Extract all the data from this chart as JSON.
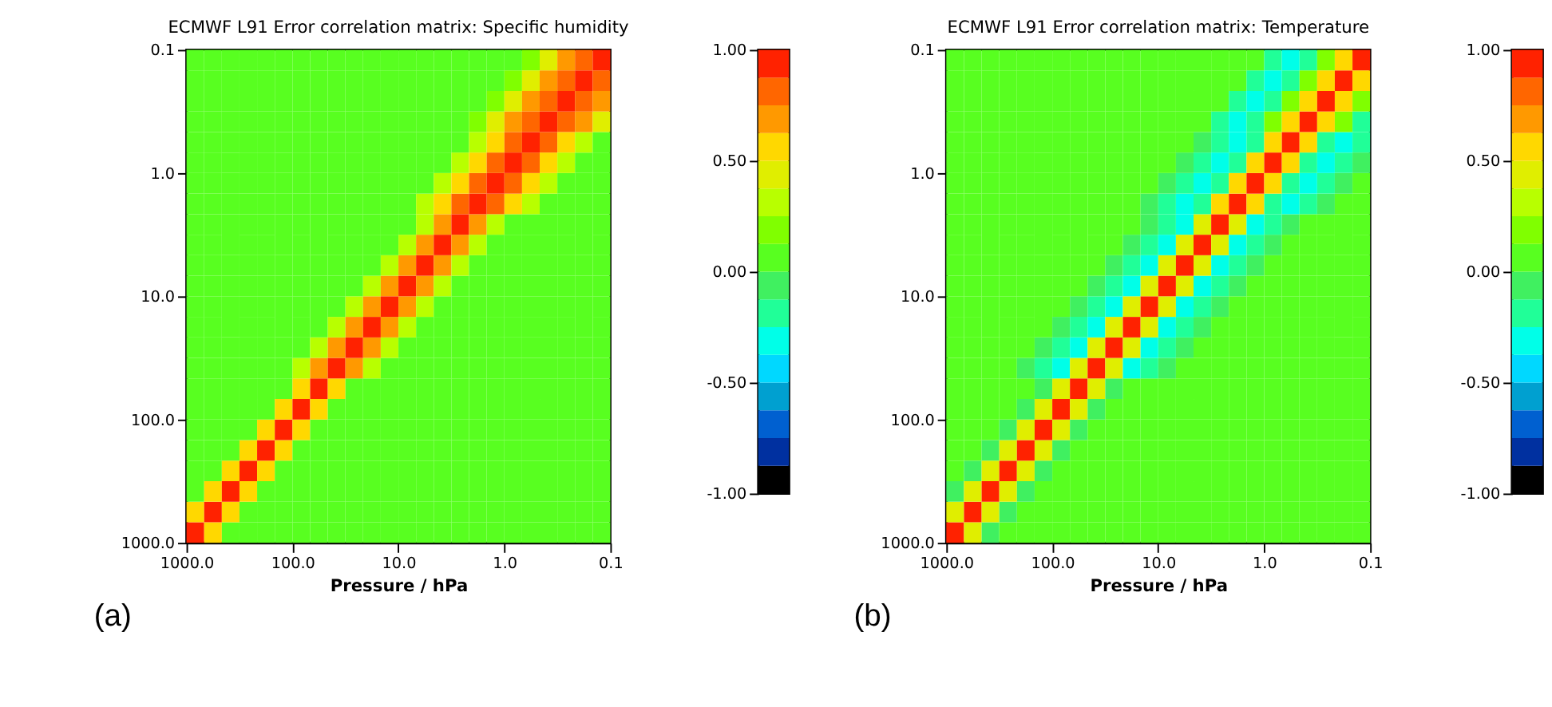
{
  "chart_data": [
    {
      "type": "heatmap",
      "title": "ECMWF L91 Error correlation matrix: Specific humidity",
      "xlabel": "Pressure / hPa",
      "annotations": [
        "(a)"
      ],
      "log": "xy",
      "grid": false,
      "x": [
        825,
        562,
        383,
        261,
        178,
        121,
        82.5,
        56.2,
        38.3,
        26.1,
        17.8,
        12.1,
        8.25,
        5.62,
        3.83,
        2.61,
        1.78,
        1.21,
        0.825,
        0.562,
        0.383,
        0.261,
        0.178,
        0.121
      ],
      "y": [
        825,
        562,
        383,
        261,
        178,
        121,
        82.5,
        56.2,
        38.3,
        26.1,
        17.8,
        12.1,
        8.25,
        5.62,
        3.83,
        2.61,
        1.78,
        1.21,
        0.825,
        0.562,
        0.383,
        0.261,
        0.178,
        0.121
      ],
      "xlim": [
        1000,
        0.1
      ],
      "ylim": [
        1000,
        0.1
      ],
      "xticks": [
        {
          "value": 1000,
          "label": "1000.0"
        },
        {
          "value": 100,
          "label": "100.0"
        },
        {
          "value": 10,
          "label": "10.0"
        },
        {
          "value": 1,
          "label": "1.0"
        },
        0.1
      ],
      "yticks": [
        {
          "value": 1000,
          "label": "1000.0"
        },
        {
          "value": 100,
          "label": "100.0"
        },
        {
          "value": 10,
          "label": "10.0"
        },
        {
          "value": 1,
          "label": "1.0"
        },
        0.1
      ],
      "clim": [
        -1,
        1
      ],
      "cticks": [
        {
          "value": 1,
          "label": "1.00"
        },
        {
          "value": 0.5,
          "label": "0.50"
        },
        {
          "value": 0,
          "label": "0.00"
        },
        {
          "value": -0.5,
          "label": "-0.50"
        },
        {
          "value": -1,
          "label": "-1.00"
        }
      ],
      "colors": [
        "#000000",
        "#0030a0",
        "#0060d0",
        "#00a0d0",
        "#00d8ff",
        "#00ffe8",
        "#20ff98",
        "#40f060",
        "#58ff20",
        "#80ff00",
        "#b8ff00",
        "#e0ee00",
        "#ffd800",
        "#ff9900",
        "#ff6600",
        "#ff2200"
      ],
      "cells": [
        [
          1,
          0.56,
          0.06,
          0.06,
          0.06,
          0.06,
          0.06,
          0.06,
          0.06,
          0.06,
          0.06,
          0.06,
          0.06,
          0.06,
          0.06,
          0.06,
          0.06,
          0.06,
          0.06,
          0.06,
          0.06,
          0.06,
          0.06,
          0.06
        ],
        [
          0.56,
          1,
          0.56,
          0.06,
          0.06,
          0.06,
          0.06,
          0.06,
          0.06,
          0.06,
          0.06,
          0.06,
          0.06,
          0.06,
          0.06,
          0.06,
          0.06,
          0.06,
          0.06,
          0.06,
          0.06,
          0.06,
          0.06,
          0.06
        ],
        [
          0.06,
          0.56,
          1,
          0.56,
          0.06,
          0.06,
          0.06,
          0.06,
          0.06,
          0.06,
          0.06,
          0.06,
          0.06,
          0.06,
          0.06,
          0.06,
          0.06,
          0.06,
          0.06,
          0.06,
          0.06,
          0.06,
          0.06,
          0.06
        ],
        [
          0.06,
          0.06,
          0.56,
          1,
          0.56,
          0.06,
          0.06,
          0.06,
          0.06,
          0.06,
          0.06,
          0.06,
          0.06,
          0.06,
          0.06,
          0.06,
          0.06,
          0.06,
          0.06,
          0.06,
          0.06,
          0.06,
          0.06,
          0.06
        ],
        [
          0.06,
          0.06,
          0.06,
          0.56,
          1,
          0.56,
          0.06,
          0.06,
          0.06,
          0.06,
          0.06,
          0.06,
          0.06,
          0.06,
          0.06,
          0.06,
          0.06,
          0.06,
          0.06,
          0.06,
          0.06,
          0.06,
          0.06,
          0.06
        ],
        [
          0.06,
          0.06,
          0.06,
          0.06,
          0.56,
          1,
          0.56,
          0.06,
          0.06,
          0.06,
          0.06,
          0.06,
          0.06,
          0.06,
          0.06,
          0.06,
          0.06,
          0.06,
          0.06,
          0.06,
          0.06,
          0.06,
          0.06,
          0.06
        ],
        [
          0.06,
          0.06,
          0.06,
          0.06,
          0.06,
          0.56,
          1,
          0.56,
          0.06,
          0.06,
          0.06,
          0.06,
          0.06,
          0.06,
          0.06,
          0.06,
          0.06,
          0.06,
          0.06,
          0.06,
          0.06,
          0.06,
          0.06,
          0.06
        ],
        [
          0.06,
          0.06,
          0.06,
          0.06,
          0.06,
          0.06,
          0.56,
          1,
          0.56,
          0.06,
          0.06,
          0.06,
          0.06,
          0.06,
          0.06,
          0.06,
          0.06,
          0.06,
          0.06,
          0.06,
          0.06,
          0.06,
          0.06,
          0.06
        ],
        [
          0.06,
          0.06,
          0.06,
          0.06,
          0.06,
          0.06,
          0.31,
          0.69,
          1,
          0.69,
          0.31,
          0.06,
          0.06,
          0.06,
          0.06,
          0.06,
          0.06,
          0.06,
          0.06,
          0.06,
          0.06,
          0.06,
          0.06,
          0.06
        ],
        [
          0.06,
          0.06,
          0.06,
          0.06,
          0.06,
          0.06,
          0.06,
          0.31,
          0.69,
          1,
          0.69,
          0.31,
          0.06,
          0.06,
          0.06,
          0.06,
          0.06,
          0.06,
          0.06,
          0.06,
          0.06,
          0.06,
          0.06,
          0.06
        ],
        [
          0.06,
          0.06,
          0.06,
          0.06,
          0.06,
          0.06,
          0.06,
          0.06,
          0.31,
          0.69,
          1,
          0.69,
          0.31,
          0.06,
          0.06,
          0.06,
          0.06,
          0.06,
          0.06,
          0.06,
          0.06,
          0.06,
          0.06,
          0.06
        ],
        [
          0.06,
          0.06,
          0.06,
          0.06,
          0.06,
          0.06,
          0.06,
          0.06,
          0.06,
          0.31,
          0.69,
          1,
          0.69,
          0.31,
          0.06,
          0.06,
          0.06,
          0.06,
          0.06,
          0.06,
          0.06,
          0.06,
          0.06,
          0.06
        ],
        [
          0.06,
          0.06,
          0.06,
          0.06,
          0.06,
          0.06,
          0.06,
          0.06,
          0.06,
          0.06,
          0.31,
          0.69,
          1,
          0.69,
          0.31,
          0.06,
          0.06,
          0.06,
          0.06,
          0.06,
          0.06,
          0.06,
          0.06,
          0.06
        ],
        [
          0.06,
          0.06,
          0.06,
          0.06,
          0.06,
          0.06,
          0.06,
          0.06,
          0.06,
          0.06,
          0.06,
          0.31,
          0.69,
          1,
          0.69,
          0.31,
          0.06,
          0.06,
          0.06,
          0.06,
          0.06,
          0.06,
          0.06,
          0.06
        ],
        [
          0.06,
          0.06,
          0.06,
          0.06,
          0.06,
          0.06,
          0.06,
          0.06,
          0.06,
          0.06,
          0.06,
          0.06,
          0.31,
          0.69,
          1,
          0.69,
          0.31,
          0.06,
          0.06,
          0.06,
          0.06,
          0.06,
          0.06,
          0.06
        ],
        [
          0.06,
          0.06,
          0.06,
          0.06,
          0.06,
          0.06,
          0.06,
          0.06,
          0.06,
          0.06,
          0.06,
          0.06,
          0.06,
          0.31,
          0.69,
          1,
          0.69,
          0.31,
          0.06,
          0.06,
          0.06,
          0.06,
          0.06,
          0.06
        ],
        [
          0.06,
          0.06,
          0.06,
          0.06,
          0.06,
          0.06,
          0.06,
          0.06,
          0.06,
          0.06,
          0.06,
          0.06,
          0.06,
          0.31,
          0.56,
          0.81,
          1,
          0.81,
          0.56,
          0.31,
          0.06,
          0.06,
          0.06,
          0.06
        ],
        [
          0.06,
          0.06,
          0.06,
          0.06,
          0.06,
          0.06,
          0.06,
          0.06,
          0.06,
          0.06,
          0.06,
          0.06,
          0.06,
          0.06,
          0.31,
          0.56,
          0.81,
          1,
          0.81,
          0.56,
          0.31,
          0.06,
          0.06,
          0.06
        ],
        [
          0.06,
          0.06,
          0.06,
          0.06,
          0.06,
          0.06,
          0.06,
          0.06,
          0.06,
          0.06,
          0.06,
          0.06,
          0.06,
          0.06,
          0.06,
          0.31,
          0.56,
          0.81,
          1,
          0.81,
          0.56,
          0.31,
          0.06,
          0.06
        ],
        [
          0.06,
          0.06,
          0.06,
          0.06,
          0.06,
          0.06,
          0.06,
          0.06,
          0.06,
          0.06,
          0.06,
          0.06,
          0.06,
          0.06,
          0.06,
          0.06,
          0.31,
          0.56,
          0.81,
          1,
          0.81,
          0.56,
          0.31,
          0.06
        ],
        [
          0.06,
          0.06,
          0.06,
          0.06,
          0.06,
          0.06,
          0.06,
          0.06,
          0.06,
          0.06,
          0.06,
          0.06,
          0.06,
          0.06,
          0.06,
          0.06,
          0.19,
          0.44,
          0.69,
          0.81,
          1,
          0.81,
          0.69,
          0.44
        ],
        [
          0.06,
          0.06,
          0.06,
          0.06,
          0.06,
          0.06,
          0.06,
          0.06,
          0.06,
          0.06,
          0.06,
          0.06,
          0.06,
          0.06,
          0.06,
          0.06,
          0.06,
          0.19,
          0.44,
          0.69,
          0.81,
          1,
          0.81,
          0.69
        ],
        [
          0.06,
          0.06,
          0.06,
          0.06,
          0.06,
          0.06,
          0.06,
          0.06,
          0.06,
          0.06,
          0.06,
          0.06,
          0.06,
          0.06,
          0.06,
          0.06,
          0.06,
          0.06,
          0.19,
          0.44,
          0.69,
          0.81,
          1,
          0.81
        ],
        [
          0.06,
          0.06,
          0.06,
          0.06,
          0.06,
          0.06,
          0.06,
          0.06,
          0.06,
          0.06,
          0.06,
          0.06,
          0.06,
          0.06,
          0.06,
          0.06,
          0.06,
          0.06,
          0.06,
          0.19,
          0.44,
          0.69,
          0.81,
          1
        ]
      ]
    },
    {
      "type": "heatmap",
      "title": "ECMWF L91 Error correlation matrix: Temperature",
      "xlabel": "Pressure / hPa",
      "annotations": [
        "(b)"
      ],
      "log": "xy",
      "grid": false,
      "x": [
        825,
        562,
        383,
        261,
        178,
        121,
        82.5,
        56.2,
        38.3,
        26.1,
        17.8,
        12.1,
        8.25,
        5.62,
        3.83,
        2.61,
        1.78,
        1.21,
        0.825,
        0.562,
        0.383,
        0.261,
        0.178,
        0.121
      ],
      "y": [
        825,
        562,
        383,
        261,
        178,
        121,
        82.5,
        56.2,
        38.3,
        26.1,
        17.8,
        12.1,
        8.25,
        5.62,
        3.83,
        2.61,
        1.78,
        1.21,
        0.825,
        0.562,
        0.383,
        0.261,
        0.178,
        0.121
      ],
      "xlim": [
        1000,
        0.1
      ],
      "ylim": [
        1000,
        0.1
      ],
      "xticks": [
        {
          "value": 1000,
          "label": "1000.0"
        },
        {
          "value": 100,
          "label": "100.0"
        },
        {
          "value": 10,
          "label": "10.0"
        },
        {
          "value": 1,
          "label": "1.0"
        },
        0.1
      ],
      "yticks": [
        {
          "value": 1000,
          "label": "1000.0"
        },
        {
          "value": 100,
          "label": "100.0"
        },
        {
          "value": 10,
          "label": "10.0"
        },
        {
          "value": 1,
          "label": "1.0"
        },
        0.1
      ],
      "clim": [
        -1,
        1
      ],
      "cticks": [
        {
          "value": 1,
          "label": "1.00"
        },
        {
          "value": 0.5,
          "label": "0.50"
        },
        {
          "value": 0,
          "label": "0.00"
        },
        {
          "value": -0.5,
          "label": "-0.50"
        },
        {
          "value": -1,
          "label": "-1.00"
        }
      ],
      "colors": [
        "#000000",
        "#0030a0",
        "#0060d0",
        "#00a0d0",
        "#00d8ff",
        "#00ffe8",
        "#20ff98",
        "#40f060",
        "#58ff20",
        "#80ff00",
        "#b8ff00",
        "#e0ee00",
        "#ffd800",
        "#ff9900",
        "#ff6600",
        "#ff2200"
      ],
      "cells": [
        [
          1,
          0.44,
          -0.06,
          0.06,
          0.06,
          0.06,
          0.06,
          0.06,
          0.06,
          0.06,
          0.06,
          0.06,
          0.06,
          0.06,
          0.06,
          0.06,
          0.06,
          0.06,
          0.06,
          0.06,
          0.06,
          0.06,
          0.06,
          0.06
        ],
        [
          0.44,
          1,
          0.44,
          -0.06,
          0.06,
          0.06,
          0.06,
          0.06,
          0.06,
          0.06,
          0.06,
          0.06,
          0.06,
          0.06,
          0.06,
          0.06,
          0.06,
          0.06,
          0.06,
          0.06,
          0.06,
          0.06,
          0.06,
          0.06
        ],
        [
          -0.06,
          0.44,
          1,
          0.44,
          -0.06,
          0.06,
          0.06,
          0.06,
          0.06,
          0.06,
          0.06,
          0.06,
          0.06,
          0.06,
          0.06,
          0.06,
          0.06,
          0.06,
          0.06,
          0.06,
          0.06,
          0.06,
          0.06,
          0.06
        ],
        [
          0.06,
          -0.06,
          0.44,
          1,
          0.44,
          -0.06,
          0.06,
          0.06,
          0.06,
          0.06,
          0.06,
          0.06,
          0.06,
          0.06,
          0.06,
          0.06,
          0.06,
          0.06,
          0.06,
          0.06,
          0.06,
          0.06,
          0.06,
          0.06
        ],
        [
          0.06,
          0.06,
          -0.06,
          0.44,
          1,
          0.44,
          -0.06,
          0.06,
          0.06,
          0.06,
          0.06,
          0.06,
          0.06,
          0.06,
          0.06,
          0.06,
          0.06,
          0.06,
          0.06,
          0.06,
          0.06,
          0.06,
          0.06,
          0.06
        ],
        [
          0.06,
          0.06,
          0.06,
          -0.06,
          0.44,
          1,
          0.44,
          -0.06,
          0.06,
          0.06,
          0.06,
          0.06,
          0.06,
          0.06,
          0.06,
          0.06,
          0.06,
          0.06,
          0.06,
          0.06,
          0.06,
          0.06,
          0.06,
          0.06
        ],
        [
          0.06,
          0.06,
          0.06,
          0.06,
          -0.06,
          0.44,
          1,
          0.44,
          -0.06,
          0.06,
          0.06,
          0.06,
          0.06,
          0.06,
          0.06,
          0.06,
          0.06,
          0.06,
          0.06,
          0.06,
          0.06,
          0.06,
          0.06,
          0.06
        ],
        [
          0.06,
          0.06,
          0.06,
          0.06,
          0.06,
          -0.06,
          0.44,
          1,
          0.44,
          -0.06,
          0.06,
          0.06,
          0.06,
          0.06,
          0.06,
          0.06,
          0.06,
          0.06,
          0.06,
          0.06,
          0.06,
          0.06,
          0.06,
          0.06
        ],
        [
          0.06,
          0.06,
          0.06,
          0.06,
          -0.06,
          -0.19,
          -0.31,
          0.44,
          1,
          0.44,
          -0.31,
          -0.19,
          -0.06,
          0.06,
          0.06,
          0.06,
          0.06,
          0.06,
          0.06,
          0.06,
          0.06,
          0.06,
          0.06,
          0.06
        ],
        [
          0.06,
          0.06,
          0.06,
          0.06,
          0.06,
          -0.06,
          -0.19,
          -0.31,
          0.44,
          1,
          0.44,
          -0.31,
          -0.19,
          -0.06,
          0.06,
          0.06,
          0.06,
          0.06,
          0.06,
          0.06,
          0.06,
          0.06,
          0.06,
          0.06
        ],
        [
          0.06,
          0.06,
          0.06,
          0.06,
          0.06,
          0.06,
          -0.06,
          -0.19,
          -0.31,
          0.44,
          1,
          0.44,
          -0.31,
          -0.19,
          -0.06,
          0.06,
          0.06,
          0.06,
          0.06,
          0.06,
          0.06,
          0.06,
          0.06,
          0.06
        ],
        [
          0.06,
          0.06,
          0.06,
          0.06,
          0.06,
          0.06,
          0.06,
          -0.06,
          -0.19,
          -0.31,
          0.44,
          1,
          0.44,
          -0.31,
          -0.19,
          -0.06,
          0.06,
          0.06,
          0.06,
          0.06,
          0.06,
          0.06,
          0.06,
          0.06
        ],
        [
          0.06,
          0.06,
          0.06,
          0.06,
          0.06,
          0.06,
          0.06,
          0.06,
          -0.06,
          -0.19,
          -0.31,
          0.44,
          1,
          0.44,
          -0.31,
          -0.19,
          -0.06,
          0.06,
          0.06,
          0.06,
          0.06,
          0.06,
          0.06,
          0.06
        ],
        [
          0.06,
          0.06,
          0.06,
          0.06,
          0.06,
          0.06,
          0.06,
          0.06,
          0.06,
          -0.06,
          -0.19,
          -0.31,
          0.44,
          1,
          0.44,
          -0.31,
          -0.19,
          -0.06,
          0.06,
          0.06,
          0.06,
          0.06,
          0.06,
          0.06
        ],
        [
          0.06,
          0.06,
          0.06,
          0.06,
          0.06,
          0.06,
          0.06,
          0.06,
          0.06,
          0.06,
          -0.06,
          -0.19,
          -0.31,
          0.44,
          1,
          0.44,
          -0.31,
          -0.19,
          -0.06,
          0.06,
          0.06,
          0.06,
          0.06,
          0.06
        ],
        [
          0.06,
          0.06,
          0.06,
          0.06,
          0.06,
          0.06,
          0.06,
          0.06,
          0.06,
          0.06,
          0.06,
          -0.06,
          -0.19,
          -0.31,
          0.44,
          1,
          0.44,
          -0.31,
          -0.19,
          -0.06,
          0.06,
          0.06,
          0.06,
          0.06
        ],
        [
          0.06,
          0.06,
          0.06,
          0.06,
          0.06,
          0.06,
          0.06,
          0.06,
          0.06,
          0.06,
          0.06,
          -0.06,
          -0.19,
          -0.31,
          -0.19,
          0.56,
          1,
          0.56,
          -0.19,
          -0.31,
          -0.19,
          -0.06,
          0.06,
          0.06
        ],
        [
          0.06,
          0.06,
          0.06,
          0.06,
          0.06,
          0.06,
          0.06,
          0.06,
          0.06,
          0.06,
          0.06,
          0.06,
          -0.06,
          -0.19,
          -0.31,
          -0.19,
          0.56,
          1,
          0.56,
          -0.19,
          -0.31,
          -0.19,
          -0.06,
          0.06
        ],
        [
          0.06,
          0.06,
          0.06,
          0.06,
          0.06,
          0.06,
          0.06,
          0.06,
          0.06,
          0.06,
          0.06,
          0.06,
          0.06,
          -0.06,
          -0.19,
          -0.31,
          -0.19,
          0.56,
          1,
          0.56,
          -0.19,
          -0.31,
          -0.19,
          -0.06
        ],
        [
          0.06,
          0.06,
          0.06,
          0.06,
          0.06,
          0.06,
          0.06,
          0.06,
          0.06,
          0.06,
          0.06,
          0.06,
          0.06,
          0.06,
          -0.06,
          -0.19,
          -0.31,
          -0.19,
          0.56,
          1,
          0.56,
          -0.19,
          -0.31,
          -0.19
        ],
        [
          0.06,
          0.06,
          0.06,
          0.06,
          0.06,
          0.06,
          0.06,
          0.06,
          0.06,
          0.06,
          0.06,
          0.06,
          0.06,
          0.06,
          0.06,
          -0.19,
          -0.31,
          -0.19,
          0.19,
          0.56,
          1,
          0.56,
          0.19,
          -0.19
        ],
        [
          0.06,
          0.06,
          0.06,
          0.06,
          0.06,
          0.06,
          0.06,
          0.06,
          0.06,
          0.06,
          0.06,
          0.06,
          0.06,
          0.06,
          0.06,
          0.06,
          -0.19,
          -0.31,
          -0.19,
          0.19,
          0.56,
          1,
          0.56,
          0.19
        ],
        [
          0.06,
          0.06,
          0.06,
          0.06,
          0.06,
          0.06,
          0.06,
          0.06,
          0.06,
          0.06,
          0.06,
          0.06,
          0.06,
          0.06,
          0.06,
          0.06,
          0.06,
          -0.19,
          -0.31,
          -0.19,
          0.19,
          0.56,
          1,
          0.56
        ],
        [
          0.06,
          0.06,
          0.06,
          0.06,
          0.06,
          0.06,
          0.06,
          0.06,
          0.06,
          0.06,
          0.06,
          0.06,
          0.06,
          0.06,
          0.06,
          0.06,
          0.06,
          0.06,
          -0.19,
          -0.31,
          -0.19,
          0.19,
          0.56,
          1
        ]
      ]
    }
  ]
}
